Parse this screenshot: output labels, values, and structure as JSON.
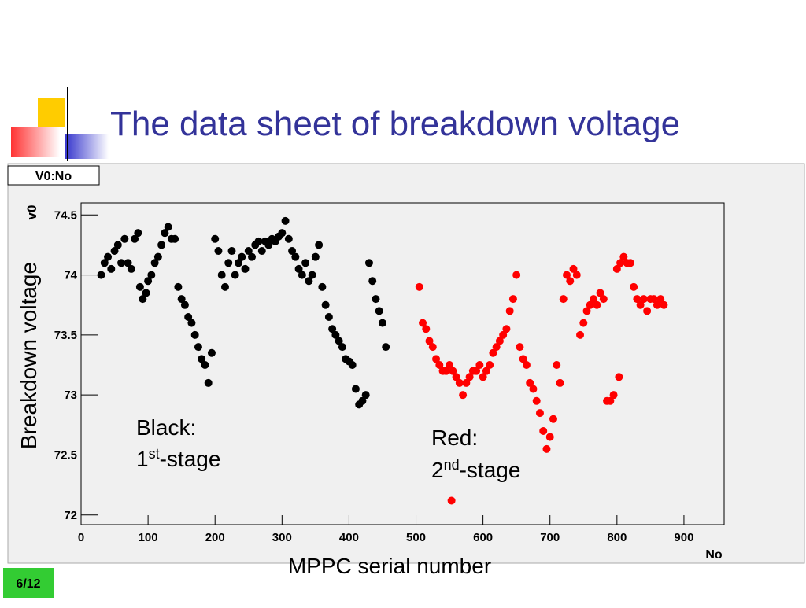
{
  "slide_title": "The data sheet of breakdown voltage",
  "page_number": "6/12",
  "chart_data": {
    "type": "scatter",
    "title": "V0:No",
    "y_axis_title": "v0",
    "x_axis_title": "No",
    "y_label": "Breakdown voltage",
    "x_label": "MPPC serial number",
    "annotations": [
      {
        "line1": "Black:",
        "line2": [
          "1",
          "st",
          "-stage"
        ],
        "color": "#000000"
      },
      {
        "line1": "Red:",
        "line2": [
          "2",
          "nd",
          "-stage"
        ],
        "color": "#000000"
      }
    ],
    "xlim": [
      0,
      960
    ],
    "ylim": [
      71.92,
      74.6
    ],
    "xticks": [
      0,
      100,
      200,
      300,
      400,
      500,
      600,
      700,
      800,
      900
    ],
    "yticks": [
      72,
      72.5,
      73,
      73.5,
      74,
      74.5
    ],
    "series": [
      {
        "color": "#000000",
        "x": [
          30,
          35,
          40,
          45,
          50,
          55,
          60,
          65,
          70,
          75,
          80,
          85,
          88,
          92,
          97,
          100,
          105,
          110,
          115,
          120,
          125,
          130,
          135,
          140,
          145,
          150,
          155,
          160,
          165,
          170,
          175,
          180,
          185,
          190,
          195,
          200,
          205,
          210,
          215,
          220,
          225,
          230,
          235,
          240,
          245,
          250,
          255,
          260,
          265,
          270,
          275,
          280,
          285,
          290,
          295,
          300,
          305,
          310,
          315,
          320,
          325,
          330,
          335,
          340,
          345,
          350,
          355,
          360,
          365,
          370,
          375,
          380,
          385,
          390,
          395,
          400,
          405,
          410,
          415,
          420,
          425,
          430,
          435,
          440,
          445,
          450,
          455
        ],
        "values": [
          74.0,
          74.1,
          74.15,
          74.05,
          74.2,
          74.25,
          74.1,
          74.3,
          74.1,
          74.05,
          74.3,
          74.35,
          73.9,
          73.8,
          73.85,
          73.95,
          74.0,
          74.1,
          74.15,
          74.25,
          74.35,
          74.4,
          74.3,
          74.3,
          73.9,
          73.8,
          73.75,
          73.65,
          73.6,
          73.5,
          73.4,
          73.3,
          73.25,
          73.1,
          73.35,
          74.3,
          74.2,
          74.0,
          73.9,
          74.1,
          74.2,
          74.0,
          74.1,
          74.15,
          74.05,
          74.2,
          74.15,
          74.25,
          74.28,
          74.2,
          74.28,
          74.25,
          74.3,
          74.28,
          74.32,
          74.35,
          74.45,
          74.3,
          74.2,
          74.15,
          74.05,
          74.0,
          74.1,
          73.95,
          74.0,
          74.15,
          74.25,
          73.9,
          73.75,
          73.65,
          73.55,
          73.5,
          73.45,
          73.4,
          73.3,
          73.28,
          73.25,
          73.05,
          72.92,
          72.95,
          73.0,
          74.1,
          73.95,
          73.8,
          73.7,
          73.6,
          73.4
        ]
      },
      {
        "color": "#ff0000",
        "x": [
          505,
          510,
          515,
          520,
          525,
          530,
          535,
          540,
          545,
          550,
          553,
          555,
          560,
          565,
          570,
          575,
          580,
          585,
          590,
          595,
          600,
          605,
          610,
          615,
          620,
          625,
          630,
          635,
          640,
          645,
          650,
          655,
          660,
          665,
          670,
          675,
          680,
          685,
          690,
          695,
          700,
          705,
          710,
          715,
          720,
          725,
          730,
          735,
          740,
          745,
          750,
          755,
          760,
          765,
          770,
          775,
          780,
          785,
          790,
          795,
          800,
          803,
          805,
          810,
          815,
          820,
          825,
          830,
          835,
          840,
          845,
          850,
          855,
          860,
          865,
          870
        ],
        "values": [
          73.9,
          73.6,
          73.55,
          73.45,
          73.4,
          73.3,
          73.25,
          73.2,
          73.2,
          73.25,
          72.12,
          73.2,
          73.15,
          73.1,
          73.0,
          73.1,
          73.15,
          73.2,
          73.2,
          73.25,
          73.15,
          73.2,
          73.25,
          73.35,
          73.4,
          73.45,
          73.5,
          73.55,
          73.7,
          73.8,
          74.0,
          73.4,
          73.3,
          73.25,
          73.1,
          73.05,
          72.95,
          72.85,
          72.7,
          72.55,
          72.65,
          72.8,
          73.25,
          73.1,
          73.8,
          74.0,
          73.95,
          74.05,
          74.0,
          73.5,
          73.6,
          73.7,
          73.75,
          73.8,
          73.75,
          73.85,
          73.8,
          72.95,
          72.95,
          73.0,
          74.05,
          73.15,
          74.1,
          74.15,
          74.1,
          74.1,
          73.9,
          73.8,
          73.75,
          73.8,
          73.7,
          73.8,
          73.8,
          73.75,
          73.8,
          73.75
        ]
      }
    ]
  }
}
